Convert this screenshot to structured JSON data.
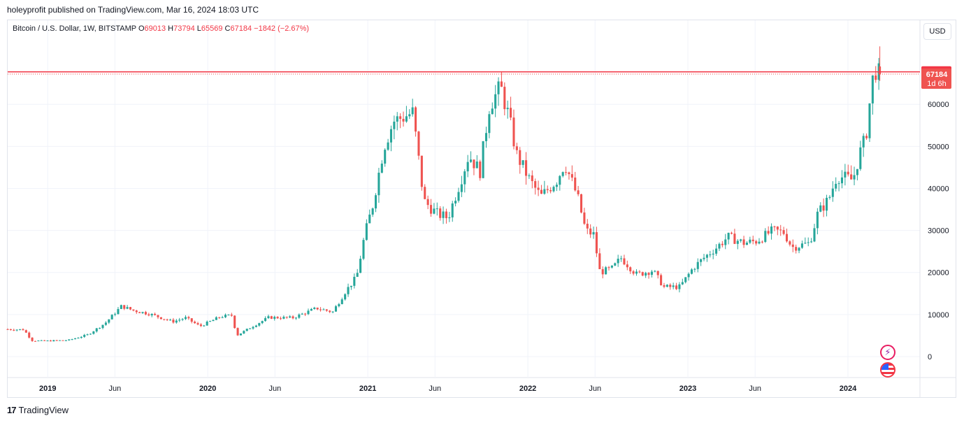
{
  "publish_info": "holeyprofit published on TradingView.com, Mar 16, 2024 18:03 UTC",
  "legend": {
    "symbol": "Bitcoin / U.S. Dollar, 1W, BITSTAMP",
    "open_label": "O",
    "open_value": "69013",
    "high_label": "H",
    "high_value": "73794",
    "low_label": "L",
    "low_value": "65569",
    "close_label": "C",
    "close_value": "67184",
    "change": "−1842 (−2.67%)"
  },
  "currency_button": "USD",
  "price_labels": {
    "level_line": "67734",
    "last_price": "67184",
    "countdown": "1d 6h"
  },
  "footer_brand": "TradingView",
  "colors": {
    "up": "#26a69a",
    "down": "#ef5350",
    "level": "#f23645",
    "grid": "#f0f3fa",
    "axis_text": "#131722"
  },
  "chart_data": {
    "type": "candlestick",
    "title": "Bitcoin / U.S. Dollar, 1W, BITSTAMP",
    "timeframe": "1W",
    "ylim": [
      -5000,
      80000
    ],
    "y_ticks": [
      0,
      10000,
      20000,
      30000,
      40000,
      50000,
      60000
    ],
    "xlim": [
      2018.75,
      2024.45
    ],
    "x_ticks": [
      {
        "t": 2019.0,
        "label": "2019",
        "bold": true
      },
      {
        "t": 2019.42,
        "label": "Jun",
        "bold": false
      },
      {
        "t": 2020.0,
        "label": "2020",
        "bold": true
      },
      {
        "t": 2020.42,
        "label": "Jun",
        "bold": false
      },
      {
        "t": 2021.0,
        "label": "2021",
        "bold": true
      },
      {
        "t": 2021.42,
        "label": "Jun",
        "bold": false
      },
      {
        "t": 2022.0,
        "label": "2022",
        "bold": true
      },
      {
        "t": 2022.42,
        "label": "Jun",
        "bold": false
      },
      {
        "t": 2023.0,
        "label": "2023",
        "bold": true
      },
      {
        "t": 2023.42,
        "label": "Jun",
        "bold": false
      },
      {
        "t": 2024.0,
        "label": "2024",
        "bold": true
      }
    ],
    "horizontal_level": 67734,
    "last_close": 67184,
    "price_path": [
      [
        2018.75,
        6500
      ],
      [
        2018.87,
        6400
      ],
      [
        2018.92,
        3800
      ],
      [
        2019.0,
        3700
      ],
      [
        2019.15,
        3900
      ],
      [
        2019.27,
        5200
      ],
      [
        2019.38,
        8000
      ],
      [
        2019.48,
        12000
      ],
      [
        2019.55,
        11000
      ],
      [
        2019.65,
        10200
      ],
      [
        2019.8,
        8300
      ],
      [
        2019.88,
        9200
      ],
      [
        2019.97,
        7200
      ],
      [
        2020.1,
        9500
      ],
      [
        2020.17,
        9800
      ],
      [
        2020.2,
        5000
      ],
      [
        2020.3,
        7200
      ],
      [
        2020.4,
        9300
      ],
      [
        2020.55,
        9200
      ],
      [
        2020.7,
        11500
      ],
      [
        2020.8,
        10600
      ],
      [
        2020.88,
        15500
      ],
      [
        2020.95,
        19000
      ],
      [
        2021.0,
        29000
      ],
      [
        2021.05,
        36000
      ],
      [
        2021.12,
        50000
      ],
      [
        2021.18,
        56000
      ],
      [
        2021.3,
        58000
      ],
      [
        2021.37,
        37000
      ],
      [
        2021.45,
        34000
      ],
      [
        2021.52,
        33000
      ],
      [
        2021.6,
        42000
      ],
      [
        2021.65,
        48000
      ],
      [
        2021.72,
        44000
      ],
      [
        2021.78,
        60000
      ],
      [
        2021.85,
        64000
      ],
      [
        2021.9,
        57000
      ],
      [
        2021.95,
        48000
      ],
      [
        2022.03,
        42000
      ],
      [
        2022.1,
        38000
      ],
      [
        2022.2,
        42000
      ],
      [
        2022.25,
        46000
      ],
      [
        2022.33,
        38000
      ],
      [
        2022.38,
        30000
      ],
      [
        2022.43,
        29000
      ],
      [
        2022.47,
        20000
      ],
      [
        2022.55,
        21000
      ],
      [
        2022.6,
        23500
      ],
      [
        2022.7,
        19500
      ],
      [
        2022.8,
        20500
      ],
      [
        2022.87,
        16500
      ],
      [
        2022.97,
        16600
      ],
      [
        2023.05,
        21000
      ],
      [
        2023.12,
        23500
      ],
      [
        2023.2,
        26000
      ],
      [
        2023.27,
        28500
      ],
      [
        2023.37,
        27000
      ],
      [
        2023.45,
        27500
      ],
      [
        2023.55,
        30000
      ],
      [
        2023.62,
        29500
      ],
      [
        2023.67,
        26000
      ],
      [
        2023.78,
        27000
      ],
      [
        2023.83,
        34000
      ],
      [
        2023.9,
        37500
      ],
      [
        2023.95,
        43000
      ],
      [
        2024.0,
        42500
      ],
      [
        2024.05,
        42000
      ],
      [
        2024.09,
        48000
      ],
      [
        2024.13,
        52000
      ],
      [
        2024.16,
        62000
      ],
      [
        2024.185,
        69013
      ],
      [
        2024.205,
        67184
      ]
    ],
    "last_candle": {
      "open": 69013,
      "high": 73794,
      "low": 65569,
      "close": 67184
    }
  }
}
